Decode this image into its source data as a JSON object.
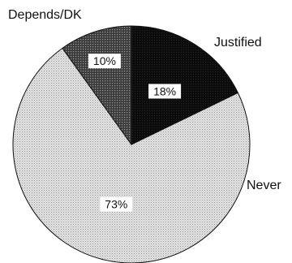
{
  "chart_data": {
    "type": "pie",
    "slices": [
      {
        "label": "Justified",
        "value": 18,
        "value_label": "18%",
        "color": "#151515",
        "label_color": "#ffffff"
      },
      {
        "label": "Never",
        "value": 73,
        "value_label": "73%",
        "color": "#d4d4d4",
        "label_color": "#ffffff"
      },
      {
        "label": "Depends/DK",
        "value": 10,
        "value_label": "10%",
        "color": "#5a5a5a",
        "label_color": "#ffffff"
      }
    ],
    "start_angle_deg": 0,
    "direction": "clockwise"
  }
}
